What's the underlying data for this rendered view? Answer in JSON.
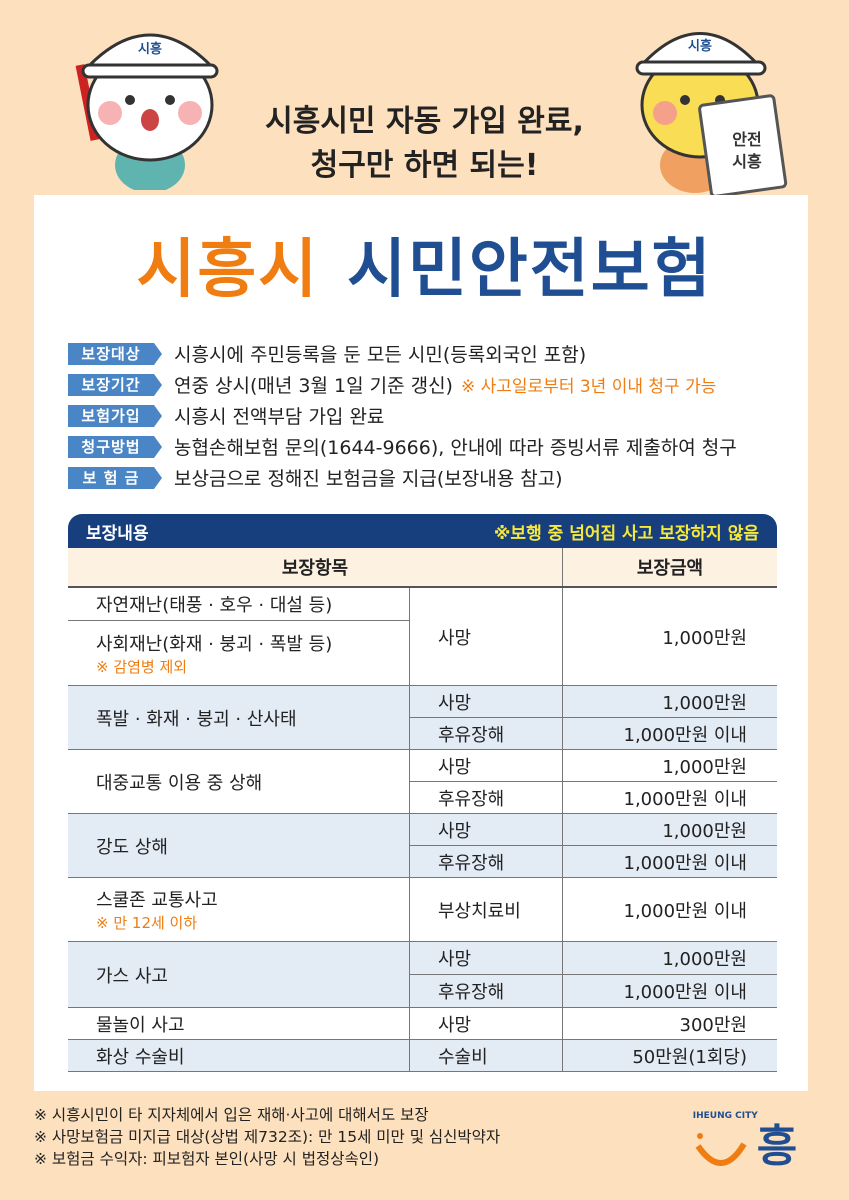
{
  "header": {
    "tagline_line1": "시흥시민 자동 가입 완료,",
    "tagline_line2": "청구만 하면 되는!",
    "badge_text": "안전\n시흥",
    "helmet_logo": "시흥"
  },
  "title": {
    "part1": "시흥시",
    "part2": "시민안전보험"
  },
  "colors": {
    "orange": "#ef7d12",
    "navy": "#1f4e93",
    "label_blue": "#4a86c6",
    "table_header": "#173f7e",
    "warning_yellow": "#f7e93a",
    "background": "#fde0bd",
    "row_shade": "#e3ebf5"
  },
  "info": [
    {
      "label": "보장대상",
      "text": "시흥시에 주민등록을 둔 모든 시민(등록외국인 포함)",
      "note": ""
    },
    {
      "label": "보장기간",
      "text": "연중 상시(매년 3월 1일 기준 갱신)",
      "note": "※ 사고일로부터 3년 이내 청구 가능"
    },
    {
      "label": "보험가입",
      "text": "시흥시 전액부담 가입 완료",
      "note": ""
    },
    {
      "label": "청구방법",
      "text": "농협손해보험 문의(1644-9666), 안내에 따라 증빙서류 제출하여 청구",
      "note": ""
    },
    {
      "label": "보 험 금",
      "text": "보상금으로 정해진 보험금을 지급(보장내용 참고)",
      "note": ""
    }
  ],
  "coverage": {
    "title": "보장내용",
    "warning": "※보행 중 넘어짐 사고 보장하지 않음",
    "col_item": "보장항목",
    "col_amount": "보장금액",
    "groups": [
      {
        "items": [
          {
            "label": "자연재난(태풍 · 호우 · 대설 등)",
            "note": ""
          },
          {
            "label": "사회재난(화재 · 붕괴 · 폭발 등)",
            "note": "※ 감염병 제외"
          }
        ],
        "rows": [
          {
            "type": "사망",
            "amount": "1,000만원"
          }
        ],
        "shaded": false
      },
      {
        "items": [
          {
            "label": "폭발 · 화재 · 붕괴 · 산사태",
            "note": ""
          }
        ],
        "rows": [
          {
            "type": "사망",
            "amount": "1,000만원"
          },
          {
            "type": "후유장해",
            "amount": "1,000만원 이내"
          }
        ],
        "shaded": true
      },
      {
        "items": [
          {
            "label": "대중교통 이용 중 상해",
            "note": ""
          }
        ],
        "rows": [
          {
            "type": "사망",
            "amount": "1,000만원"
          },
          {
            "type": "후유장해",
            "amount": "1,000만원 이내"
          }
        ],
        "shaded": false
      },
      {
        "items": [
          {
            "label": "강도 상해",
            "note": ""
          }
        ],
        "rows": [
          {
            "type": "사망",
            "amount": "1,000만원"
          },
          {
            "type": "후유장해",
            "amount": "1,000만원 이내"
          }
        ],
        "shaded": true
      },
      {
        "items": [
          {
            "label": "스쿨존 교통사고",
            "note": "※ 만 12세 이하"
          }
        ],
        "rows": [
          {
            "type": "부상치료비",
            "amount": "1,000만원 이내"
          }
        ],
        "shaded": false
      },
      {
        "items": [
          {
            "label": "가스 사고",
            "note": ""
          }
        ],
        "rows": [
          {
            "type": "사망",
            "amount": "1,000만원"
          },
          {
            "type": "후유장해",
            "amount": "1,000만원 이내"
          }
        ],
        "shaded": true
      },
      {
        "items": [
          {
            "label": "물놀이 사고",
            "note": ""
          }
        ],
        "rows": [
          {
            "type": "사망",
            "amount": "300만원"
          }
        ],
        "shaded": false
      },
      {
        "items": [
          {
            "label": "화상 수술비",
            "note": ""
          }
        ],
        "rows": [
          {
            "type": "수술비",
            "amount": "50만원(1회당)"
          }
        ],
        "shaded": true
      }
    ]
  },
  "footer": {
    "notes": [
      "※ 시흥시민이 타 지자체에서 입은 재해·사고에 대해서도 보장",
      "※ 사망보험금 미지급 대상(상법 제732조): 만 15세 미만 및 심신박약자",
      "※ 보험금 수익자: 피보험자 본인(사망 시 법정상속인)"
    ],
    "logo_en": "SIHEUNG CITY",
    "logo_ko": "시흥"
  }
}
